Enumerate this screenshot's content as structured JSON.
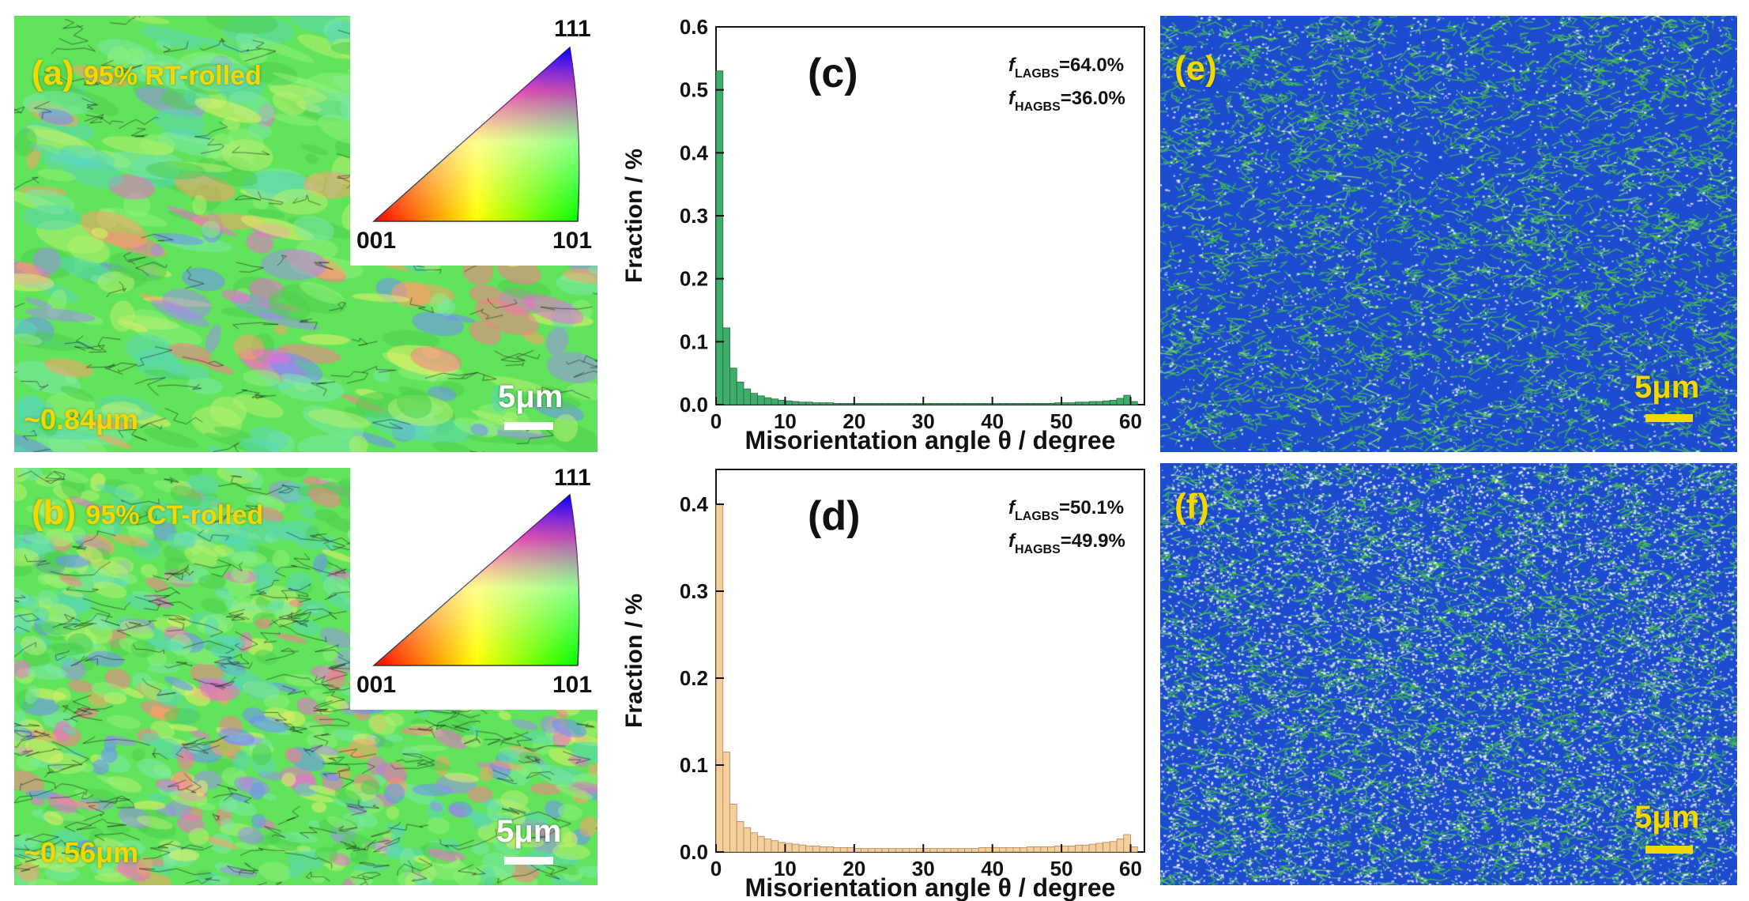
{
  "panel_a": {
    "label": "(a)",
    "title": "95% RT-rolled",
    "grain_size": "~0.84μm",
    "scale_bar": "5μm",
    "ipf": {
      "top": "111",
      "left": "001",
      "right": "101"
    }
  },
  "panel_b": {
    "label": "(b)",
    "title": "95% CT-rolled",
    "grain_size": "~0.56μm",
    "scale_bar": "5μm",
    "ipf": {
      "top": "111",
      "left": "001",
      "right": "101"
    }
  },
  "panel_e": {
    "label": "(e)",
    "scale_bar": "5μm"
  },
  "panel_f": {
    "label": "(f)",
    "scale_bar": "5μm"
  },
  "chart_data": [
    {
      "id": "c",
      "type": "bar",
      "panel_label": "(c)",
      "xlabel": "Misorientation angle θ / degree",
      "ylabel": "Fraction / %",
      "xlim": [
        0,
        62
      ],
      "ylim": [
        0,
        0.6
      ],
      "xticks": [
        0,
        10,
        20,
        30,
        40,
        50,
        60
      ],
      "yticks": [
        0.0,
        0.1,
        0.2,
        0.3,
        0.4,
        0.5,
        0.6
      ],
      "ytick_labels": [
        "0.0",
        "0.1",
        "0.2",
        "0.3",
        "0.4",
        "0.5",
        "0.6"
      ],
      "bar_color": "#3fae6a",
      "bar_stroke": "#1f6a3c",
      "annotations": [
        {
          "italic": "f",
          "sub": "LAGBS",
          "text": "=64.0%"
        },
        {
          "italic": "f",
          "sub": "HAGBS",
          "text": "=36.0%"
        }
      ],
      "bin_width": 1,
      "x": [
        1,
        2,
        3,
        4,
        5,
        6,
        7,
        8,
        9,
        10,
        11,
        12,
        13,
        14,
        15,
        16,
        17,
        18,
        19,
        20,
        21,
        22,
        23,
        24,
        25,
        26,
        27,
        28,
        29,
        30,
        31,
        32,
        33,
        34,
        35,
        36,
        37,
        38,
        39,
        40,
        41,
        42,
        43,
        44,
        45,
        46,
        47,
        48,
        49,
        50,
        51,
        52,
        53,
        54,
        55,
        56,
        57,
        58,
        59,
        60,
        61
      ],
      "values": [
        0.53,
        0.122,
        0.058,
        0.036,
        0.025,
        0.018,
        0.014,
        0.011,
        0.009,
        0.007,
        0.006,
        0.005,
        0.004,
        0.004,
        0.003,
        0.003,
        0.003,
        0.002,
        0.002,
        0.002,
        0.002,
        0.002,
        0.002,
        0.002,
        0.002,
        0.002,
        0.002,
        0.002,
        0.002,
        0.002,
        0.002,
        0.002,
        0.002,
        0.002,
        0.002,
        0.002,
        0.002,
        0.002,
        0.002,
        0.002,
        0.002,
        0.002,
        0.002,
        0.002,
        0.002,
        0.002,
        0.002,
        0.002,
        0.002,
        0.003,
        0.003,
        0.003,
        0.004,
        0.004,
        0.005,
        0.005,
        0.006,
        0.007,
        0.01,
        0.015,
        0.005
      ]
    },
    {
      "id": "d",
      "type": "bar",
      "panel_label": "(d)",
      "xlabel": "Misorientation angle θ / degree",
      "ylabel": "Fraction / %",
      "xlim": [
        0,
        62
      ],
      "ylim": [
        0,
        0.44
      ],
      "xticks": [
        0,
        10,
        20,
        30,
        40,
        50,
        60
      ],
      "yticks": [
        0.0,
        0.1,
        0.2,
        0.3,
        0.4
      ],
      "ytick_labels": [
        "0.0",
        "0.1",
        "0.2",
        "0.3",
        "0.4"
      ],
      "bar_color": "#f3cf9e",
      "bar_stroke": "#b5854e",
      "annotations": [
        {
          "italic": "f",
          "sub": "LAGBS",
          "text": "=50.1%"
        },
        {
          "italic": "f",
          "sub": "HAGBS",
          "text": "=49.9%"
        }
      ],
      "bin_width": 1,
      "x": [
        1,
        2,
        3,
        4,
        5,
        6,
        7,
        8,
        9,
        10,
        11,
        12,
        13,
        14,
        15,
        16,
        17,
        18,
        19,
        20,
        21,
        22,
        23,
        24,
        25,
        26,
        27,
        28,
        29,
        30,
        31,
        32,
        33,
        34,
        35,
        36,
        37,
        38,
        39,
        40,
        41,
        42,
        43,
        44,
        45,
        46,
        47,
        48,
        49,
        50,
        51,
        52,
        53,
        54,
        55,
        56,
        57,
        58,
        59,
        60,
        61
      ],
      "values": [
        0.4,
        0.115,
        0.055,
        0.035,
        0.028,
        0.022,
        0.018,
        0.015,
        0.013,
        0.011,
        0.01,
        0.009,
        0.008,
        0.007,
        0.007,
        0.006,
        0.006,
        0.005,
        0.005,
        0.005,
        0.004,
        0.004,
        0.004,
        0.004,
        0.004,
        0.004,
        0.004,
        0.004,
        0.004,
        0.004,
        0.004,
        0.004,
        0.004,
        0.004,
        0.004,
        0.004,
        0.004,
        0.004,
        0.005,
        0.005,
        0.005,
        0.005,
        0.005,
        0.005,
        0.005,
        0.006,
        0.006,
        0.006,
        0.006,
        0.007,
        0.007,
        0.007,
        0.008,
        0.008,
        0.009,
        0.01,
        0.011,
        0.012,
        0.015,
        0.02,
        0.006
      ]
    }
  ]
}
